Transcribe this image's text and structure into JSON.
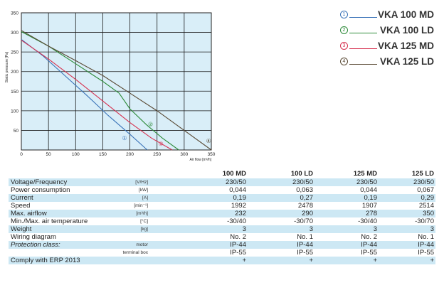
{
  "chart_data": {
    "type": "line",
    "xlabel": "Air flow [m³/h]",
    "ylabel": "Static pressure [Pa]",
    "xlim": [
      0,
      350
    ],
    "ylim": [
      0,
      350
    ],
    "xticks": [
      "0",
      "50",
      "100",
      "150",
      "200",
      "250",
      "300",
      "350"
    ],
    "yticks": [
      "50",
      "100",
      "150",
      "200",
      "250",
      "300",
      "350"
    ],
    "grid": true,
    "series": [
      {
        "name": "VKA 100 MD",
        "marker": "①",
        "color": "#3a73b8",
        "x": [
          0,
          40,
          80,
          120,
          160,
          200,
          232
        ],
        "y": [
          282,
          240,
          190,
          140,
          88,
          40,
          0
        ]
      },
      {
        "name": "VKA 100 LD",
        "marker": "②",
        "color": "#2e8b3a",
        "x": [
          0,
          50,
          100,
          150,
          180,
          200,
          230,
          260,
          290
        ],
        "y": [
          302,
          265,
          220,
          175,
          145,
          105,
          65,
          30,
          0
        ]
      },
      {
        "name": "VKA 125 MD",
        "marker": "③",
        "color": "#d6314f",
        "x": [
          0,
          50,
          100,
          150,
          200,
          240,
          278
        ],
        "y": [
          280,
          232,
          180,
          125,
          70,
          30,
          0
        ]
      },
      {
        "name": "VKA 125 LD",
        "marker": "④",
        "color": "#5a4a35",
        "x": [
          0,
          50,
          100,
          150,
          200,
          250,
          300,
          350
        ],
        "y": [
          305,
          265,
          228,
          190,
          145,
          100,
          50,
          0
        ]
      }
    ],
    "labels_on_plot": [
      {
        "text": "①",
        "x": 190,
        "y": 33,
        "color": "#3a73b8"
      },
      {
        "text": "②",
        "x": 238,
        "y": 68,
        "color": "#2e8b3a"
      },
      {
        "text": "③",
        "x": 257,
        "y": 18,
        "color": "#d6314f"
      },
      {
        "text": "④",
        "x": 345,
        "y": 25,
        "color": "#5a4a35"
      }
    ]
  },
  "legend": [
    {
      "marker": "①",
      "name": "VKA 100 MD",
      "color": "#3a73b8"
    },
    {
      "marker": "②",
      "name": "VKA 100 LD",
      "color": "#2e8b3a"
    },
    {
      "marker": "③",
      "name": "VKA 125 MD",
      "color": "#d6314f"
    },
    {
      "marker": "④",
      "name": "VKA 125 LD",
      "color": "#5a4a35"
    }
  ],
  "spec_table": {
    "columns": [
      "100 MD",
      "100 LD",
      "125 MD",
      "125 LD"
    ],
    "rows": [
      {
        "name": "Voltage/Frequency",
        "unit": "[V/Hz]",
        "values": [
          "230/50",
          "230/50",
          "230/50",
          "230/50"
        ]
      },
      {
        "name": "Power consumption",
        "unit": "[kW]",
        "values": [
          "0,044",
          "0,063",
          "0,044",
          "0,067"
        ]
      },
      {
        "name": "Current",
        "unit": "[A]",
        "values": [
          "0,19",
          "0,27",
          "0,19",
          "0,29"
        ]
      },
      {
        "name": "Speed",
        "unit": "[min⁻¹]",
        "values": [
          "1992",
          "2478",
          "1907",
          "2514"
        ]
      },
      {
        "name": "Max. airflow",
        "unit": "[m³/h]",
        "values": [
          "232",
          "290",
          "278",
          "350"
        ]
      },
      {
        "name": "Min./Max. air temperature",
        "unit": "[°C]",
        "values": [
          "-30/40",
          "-30/70",
          "-30/40",
          "-30/70"
        ]
      },
      {
        "name": "Weight",
        "unit": "[kg]",
        "values": [
          "3",
          "3",
          "3",
          "3"
        ]
      },
      {
        "name": "Wiring diagram",
        "unit": "",
        "values": [
          "No. 2",
          "No. 1",
          "No. 2",
          "No. 1"
        ]
      },
      {
        "name": "Protection class:",
        "unit": "motor",
        "values": [
          "IP-44",
          "IP-44",
          "IP-44",
          "IP-44"
        ],
        "italic": true
      },
      {
        "name": "",
        "unit": "terminal box",
        "values": [
          "IP-55",
          "IP-55",
          "IP-55",
          "IP-55"
        ]
      },
      {
        "name": "Comply with ERP 2013",
        "unit": "",
        "values": [
          "+",
          "+",
          "+",
          "+"
        ]
      }
    ]
  }
}
